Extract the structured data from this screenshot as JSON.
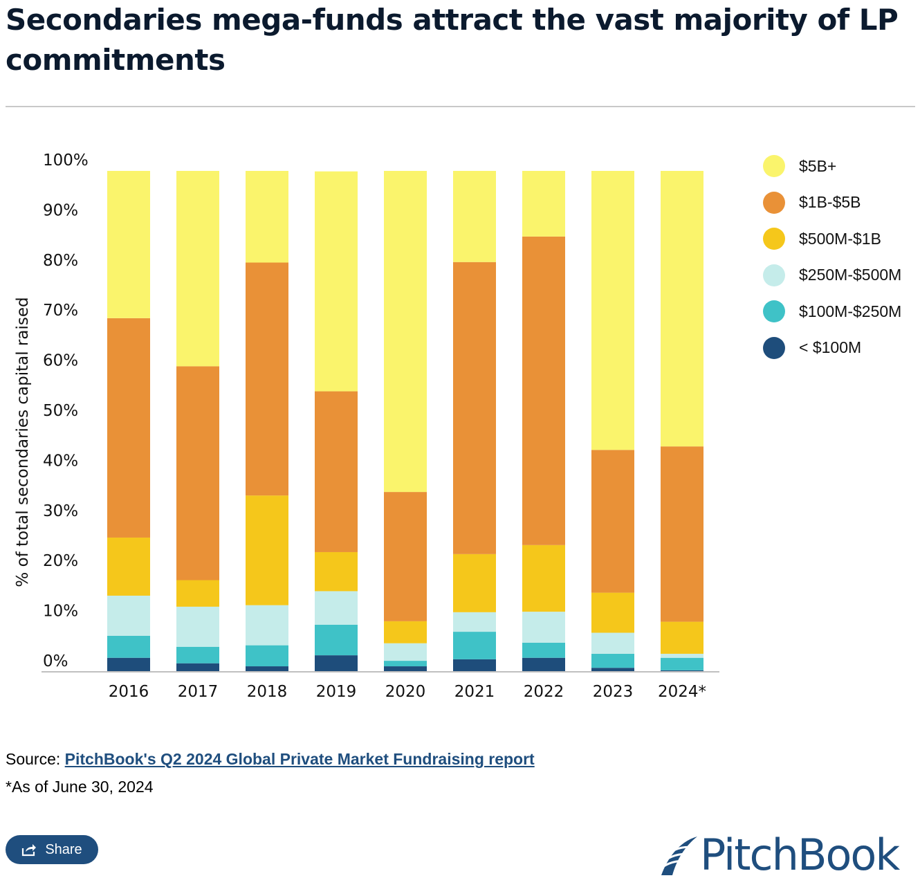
{
  "title": "Secondaries mega-funds attract the vast majority of LP commitments",
  "source": {
    "label": "Source:",
    "link_text": "PitchBook's Q2 2024 Global Private Market Fundraising report "
  },
  "footnote": "*As of June 30, 2024",
  "share_label": "Share",
  "logo_text": "PitchBook",
  "chart_data": {
    "type": "bar",
    "stacked": true,
    "categories": [
      "2016",
      "2017",
      "2018",
      "2019",
      "2020",
      "2021",
      "2022",
      "2023",
      "2024*"
    ],
    "ylabel": "% of total secondaries capital raised",
    "ylim": [
      0,
      100
    ],
    "yticks": [
      "0%",
      "10%",
      "20%",
      "30%",
      "40%",
      "50%",
      "60%",
      "70%",
      "80%",
      "90%",
      "100%"
    ],
    "grid": false,
    "legend_position": "right",
    "series": [
      {
        "name": "< $100M",
        "color": "#1e4d7b",
        "values": [
          2.8,
          1.7,
          1.1,
          3.3,
          1.1,
          2.5,
          2.8,
          0.8,
          0.3
        ]
      },
      {
        "name": "$100M-$250M",
        "color": "#3fc2c7",
        "values": [
          4.4,
          3.3,
          4.2,
          6.1,
          1.1,
          5.5,
          3.0,
          2.8,
          2.5
        ]
      },
      {
        "name": "$250M-$500M",
        "color": "#c5ecea",
        "values": [
          8.0,
          8.0,
          8.0,
          6.7,
          3.5,
          3.9,
          6.2,
          4.2,
          0.8
        ]
      },
      {
        "name": "$500M-$1B",
        "color": "#f5c71b",
        "values": [
          11.6,
          5.3,
          21.9,
          7.8,
          4.4,
          11.6,
          13.3,
          8.0,
          6.4
        ]
      },
      {
        "name": "$1B-$5B",
        "color": "#e99137",
        "values": [
          43.8,
          42.7,
          46.5,
          32.1,
          25.8,
          58.3,
          61.6,
          28.5,
          35.0
        ]
      },
      {
        "name": "$5B+",
        "color": "#faf46c",
        "values": [
          29.4,
          39.0,
          18.3,
          43.9,
          64.1,
          18.2,
          13.1,
          55.7,
          55.0
        ]
      }
    ]
  }
}
